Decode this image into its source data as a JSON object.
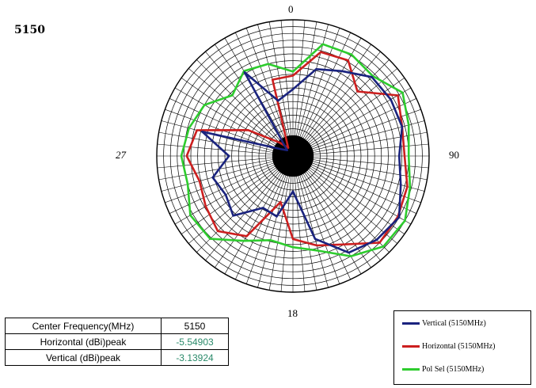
{
  "page": {
    "title": "5150"
  },
  "chart_data": {
    "type": "polar",
    "title": "5150",
    "angle_labels": [
      "0",
      "90",
      "18",
      "27"
    ],
    "grid": true,
    "legend_position": "bottom-right",
    "radial_rings": 20,
    "spokes": 72,
    "angles_deg": [
      0,
      15,
      30,
      45,
      60,
      75,
      90,
      105,
      120,
      135,
      150,
      165,
      180,
      195,
      210,
      225,
      240,
      255,
      270,
      285,
      300,
      315,
      330,
      345
    ],
    "series": [
      {
        "name": "Vertical (5150MHz)",
        "color": "#1a237e",
        "values": [
          0.49,
          0.66,
          0.72,
          0.82,
          0.83,
          0.83,
          0.78,
          0.82,
          0.9,
          0.87,
          0.82,
          0.63,
          0.26,
          0.46,
          0.44,
          0.62,
          0.57,
          0.61,
          0.47,
          0.69,
          0.1,
          0.06,
          0.71,
          0.42
        ]
      },
      {
        "name": "Horizontal (5150MHz)",
        "color": "#cc1f1f",
        "values": [
          0.59,
          0.79,
          0.81,
          0.67,
          0.89,
          0.83,
          0.82,
          0.87,
          0.89,
          0.9,
          0.75,
          0.68,
          0.61,
          0.35,
          0.68,
          0.78,
          0.74,
          0.71,
          0.78,
          0.73,
          0.38,
          0.14,
          0.07,
          0.58
        ]
      },
      {
        "name": "Pol Sel (5150MHz)",
        "color": "#2ecc2e",
        "values": [
          0.62,
          0.85,
          0.86,
          0.83,
          0.93,
          0.88,
          0.85,
          0.89,
          0.95,
          0.94,
          0.85,
          0.72,
          0.67,
          0.64,
          0.72,
          0.86,
          0.87,
          0.8,
          0.82,
          0.79,
          0.75,
          0.63,
          0.72,
          0.7
        ]
      }
    ]
  },
  "table": {
    "rows": [
      {
        "label": "Center Frequency(MHz)",
        "value": "5150",
        "value_color": "#000000"
      },
      {
        "label": "Horizontal (dBi)peak",
        "value": "-5.54903",
        "value_color": "#2a8a6a"
      },
      {
        "label": "Vertical (dBi)peak",
        "value": "-3.13924",
        "value_color": "#2a8a6a"
      }
    ]
  },
  "legend": {
    "items": [
      {
        "label": "Vertical (5150MHz)",
        "color": "#1a237e"
      },
      {
        "label": "Horizontal (5150MHz)",
        "color": "#cc1f1f"
      },
      {
        "label": "Pol Sel (5150MHz)",
        "color": "#2ecc2e"
      }
    ]
  }
}
